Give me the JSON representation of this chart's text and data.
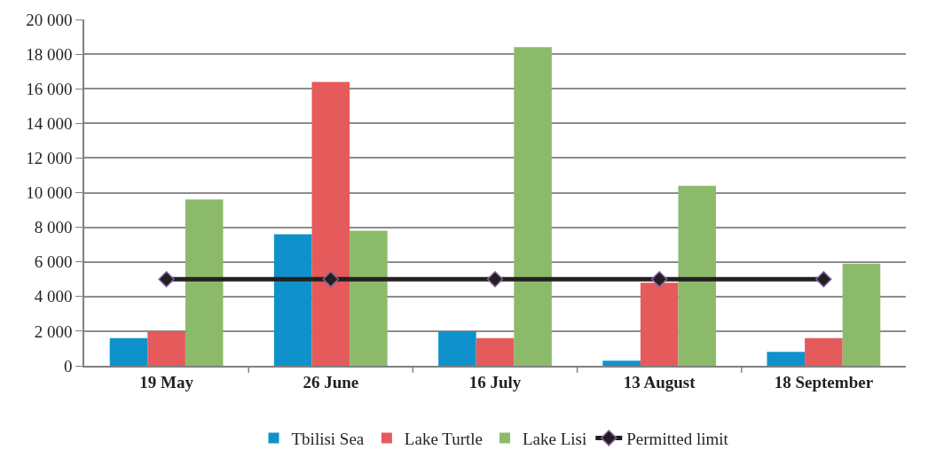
{
  "chart_data": {
    "type": "bar",
    "categories": [
      "19 May",
      "26 June",
      "16 July",
      "13 August",
      "18 September"
    ],
    "series": [
      {
        "name": "Tbilisi Sea",
        "color": "#0f92cc",
        "values": [
          1600,
          7600,
          2000,
          300,
          800
        ]
      },
      {
        "name": "Lake Turtle",
        "color": "#e55a5a",
        "values": [
          2000,
          16400,
          1600,
          4800,
          1600
        ]
      },
      {
        "name": "Lake Lisi",
        "color": "#8cba6b",
        "values": [
          9600,
          7800,
          18400,
          10400,
          5900
        ]
      },
      {
        "name": "Permitted limit",
        "type": "line",
        "color": "#231f20",
        "marker": "diamond",
        "values": [
          5000,
          5000,
          5000,
          5000,
          5000
        ]
      }
    ],
    "ylim": [
      0,
      20000
    ],
    "yticks": [
      {
        "value": 0,
        "label": "0"
      },
      {
        "value": 2000,
        "label": "2 000"
      },
      {
        "value": 4000,
        "label": "4 000"
      },
      {
        "value": 6000,
        "label": "6 000"
      },
      {
        "value": 8000,
        "label": "8 000"
      },
      {
        "value": 10000,
        "label": "10 000"
      },
      {
        "value": 12000,
        "label": "12 000"
      },
      {
        "value": 14000,
        "label": "14 000"
      },
      {
        "value": 16000,
        "label": "16 000"
      },
      {
        "value": 18000,
        "label": "18 000"
      },
      {
        "value": 20000,
        "label": "20 000"
      }
    ],
    "grid": "y",
    "legend": "bottom"
  }
}
